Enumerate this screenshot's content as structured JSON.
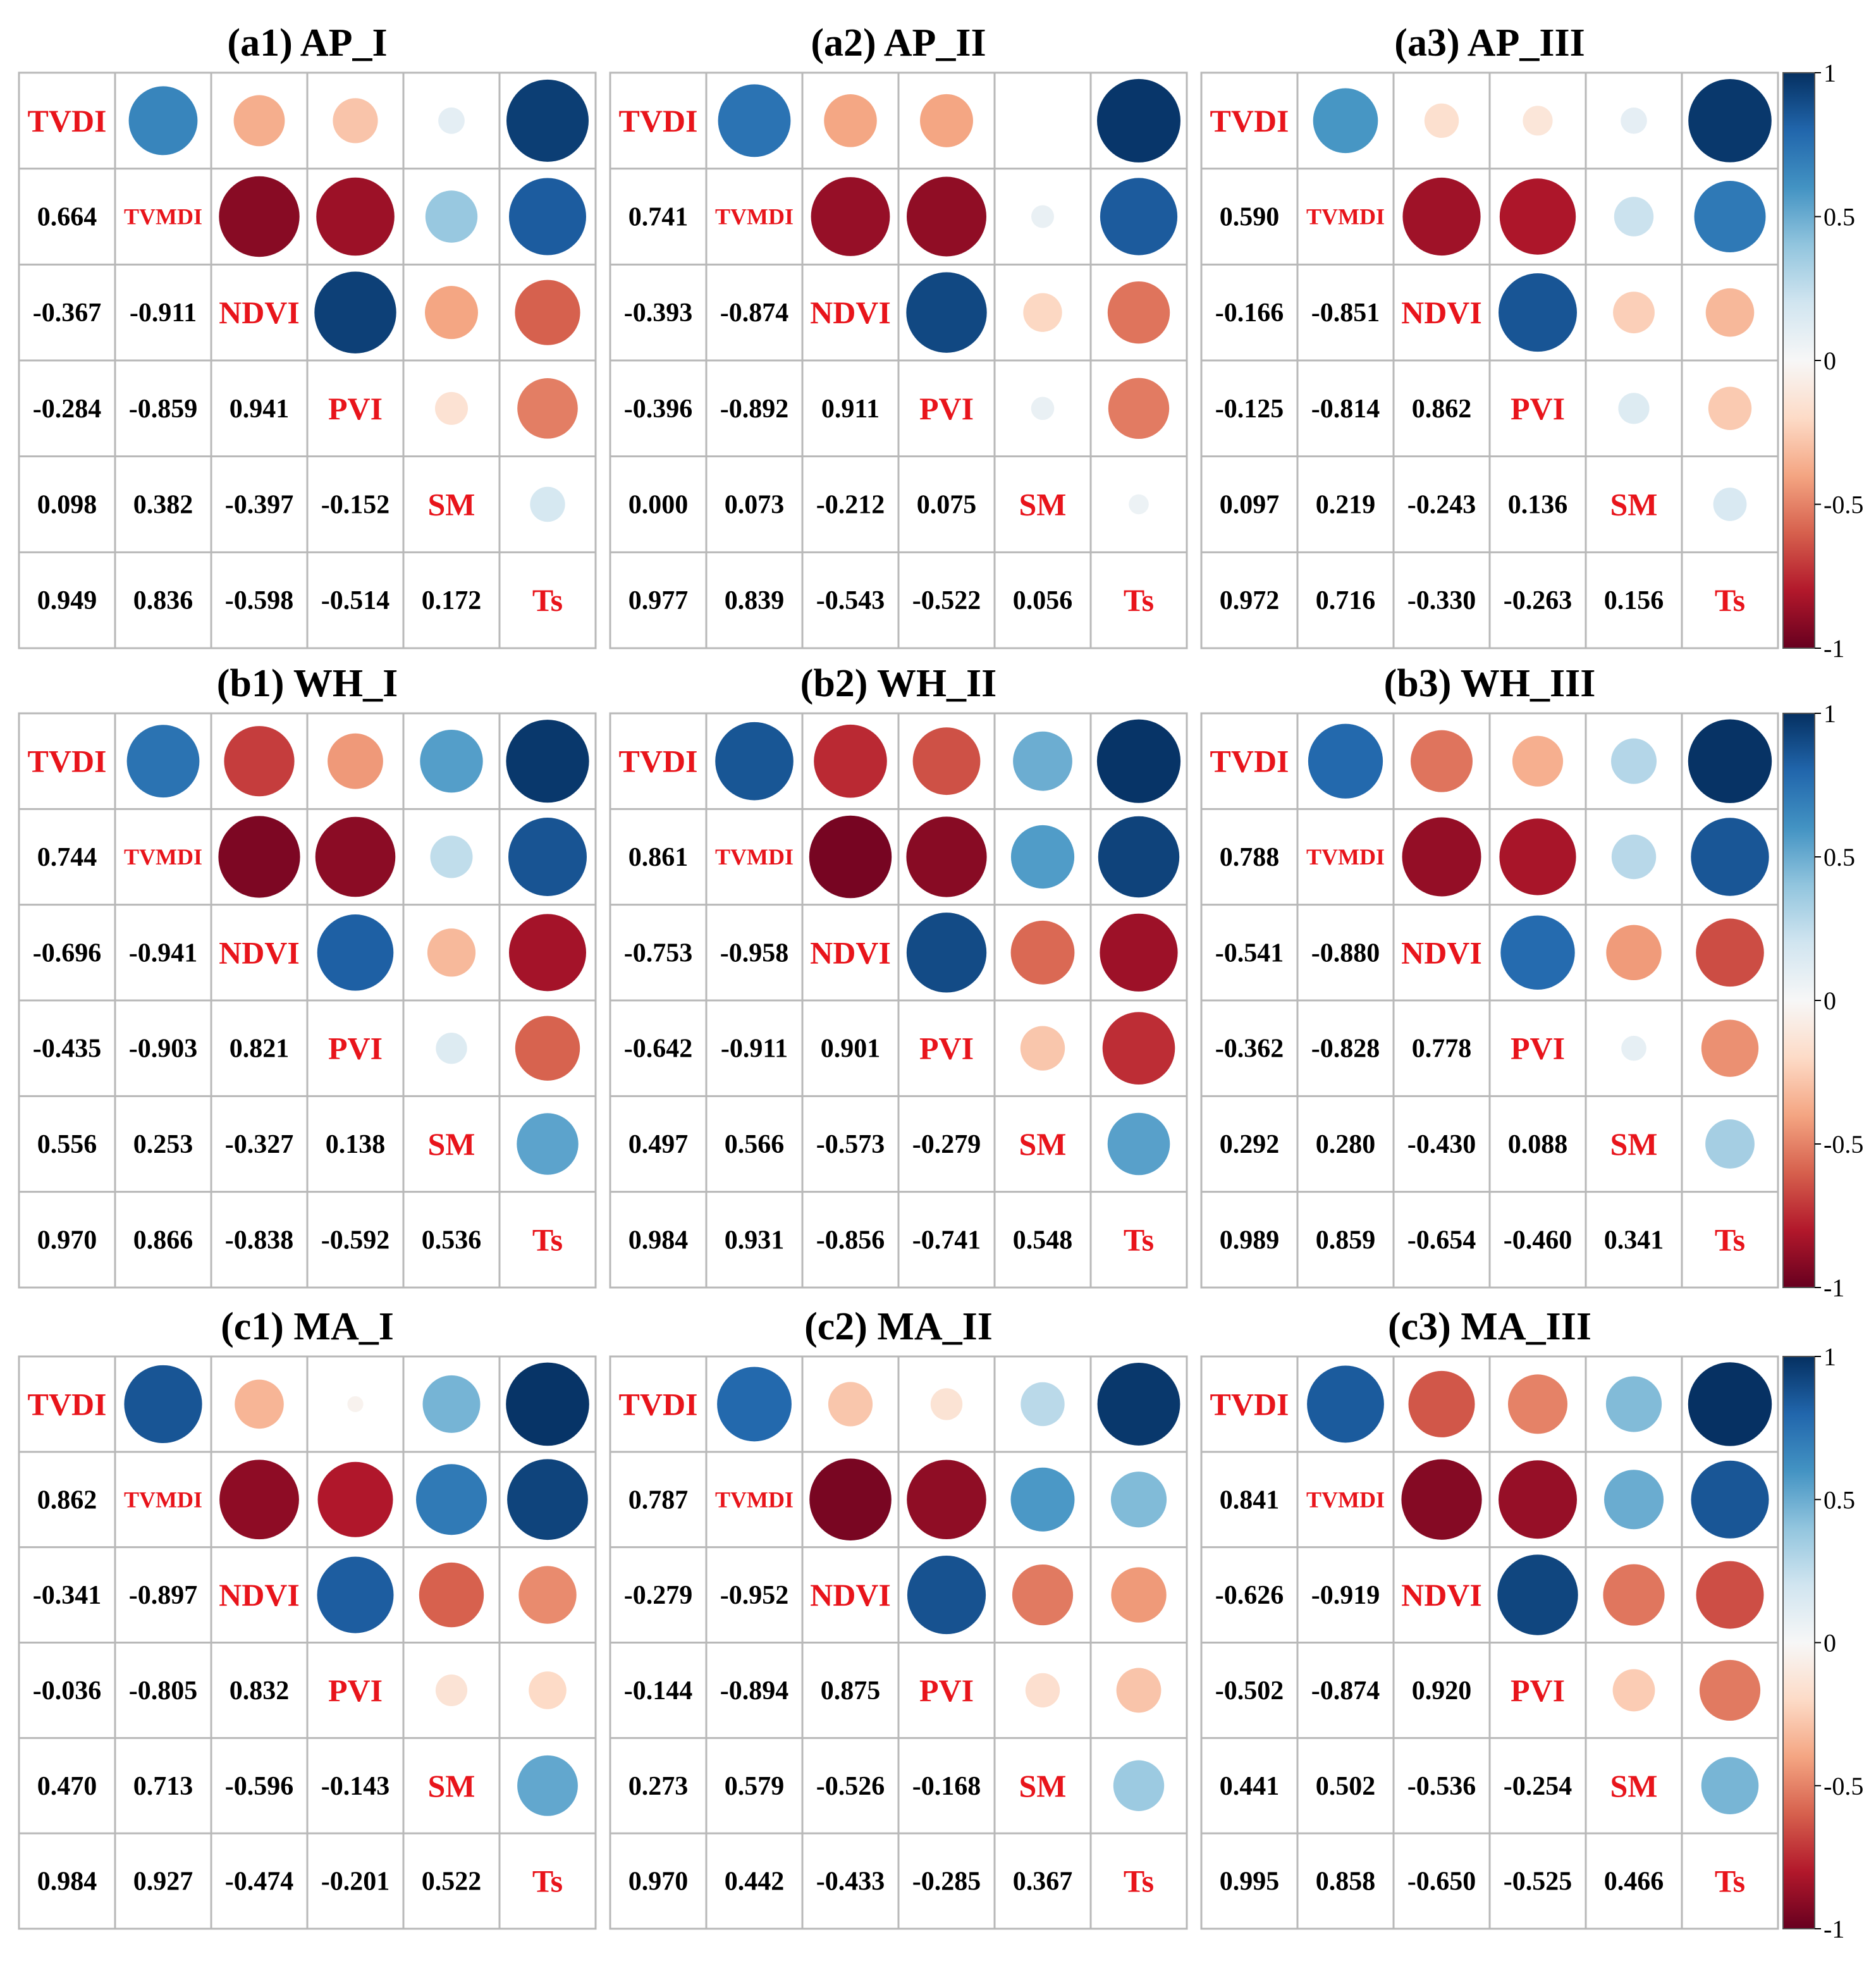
{
  "chart_data": {
    "type": "heatmap",
    "variables": [
      "TVDI",
      "TVMDI",
      "NDVI",
      "PVI",
      "SM",
      "Ts"
    ],
    "colorbar": {
      "ticks": [
        "1",
        "0.5",
        "0",
        "-0.5",
        "-1"
      ],
      "range": [
        -1,
        1
      ]
    },
    "palette": [
      "#67001f",
      "#b2182b",
      "#d6604d",
      "#f4a582",
      "#fddbc7",
      "#f7f7f7",
      "#d1e5f0",
      "#92c5de",
      "#4393c3",
      "#2166ac",
      "#053061"
    ],
    "panels": [
      {
        "title": "(a1) AP_I",
        "matrix": [
          [
            1,
            0.664,
            -0.367,
            -0.284,
            0.098,
            0.949
          ],
          [
            0.664,
            1,
            -0.911,
            -0.859,
            0.382,
            0.836
          ],
          [
            -0.367,
            -0.911,
            1,
            0.941,
            -0.397,
            -0.598
          ],
          [
            -0.284,
            -0.859,
            0.941,
            1,
            -0.152,
            -0.514
          ],
          [
            0.098,
            0.382,
            -0.397,
            -0.152,
            1,
            0.172
          ],
          [
            0.949,
            0.836,
            -0.598,
            -0.514,
            0.172,
            1
          ]
        ],
        "labels": [
          [
            "0.664",
            "-0.367",
            "-0.284",
            "0.098",
            "0.949"
          ],
          [
            "-0.911",
            "-0.859",
            "0.382",
            "0.836"
          ],
          [
            "0.941",
            "-0.397",
            "-0.598"
          ],
          [
            "-0.152",
            "-0.514"
          ],
          [
            "0.172"
          ]
        ]
      },
      {
        "title": "(a2) AP_II",
        "matrix": [
          [
            1,
            0.741,
            -0.393,
            -0.396,
            0.0,
            0.977
          ],
          [
            0.741,
            1,
            -0.874,
            -0.892,
            0.073,
            0.839
          ],
          [
            -0.393,
            -0.874,
            1,
            0.911,
            -0.212,
            -0.543
          ],
          [
            -0.396,
            -0.892,
            0.911,
            1,
            0.075,
            -0.522
          ],
          [
            0.0,
            0.073,
            -0.212,
            0.075,
            1,
            0.056
          ],
          [
            0.977,
            0.839,
            -0.543,
            -0.522,
            0.056,
            1
          ]
        ],
        "labels": [
          [
            "0.741",
            "-0.393",
            "-0.396",
            "0.000",
            "0.977"
          ],
          [
            "-0.874",
            "-0.892",
            "0.073",
            "0.839"
          ],
          [
            "0.911",
            "-0.212",
            "-0.543"
          ],
          [
            "0.075",
            "-0.522"
          ],
          [
            "0.056"
          ]
        ]
      },
      {
        "title": "(a3) AP_III",
        "matrix": [
          [
            1,
            0.59,
            -0.166,
            -0.125,
            0.097,
            0.972
          ],
          [
            0.59,
            1,
            -0.851,
            -0.814,
            0.219,
            0.716
          ],
          [
            -0.166,
            -0.851,
            1,
            0.862,
            -0.243,
            -0.33
          ],
          [
            -0.125,
            -0.814,
            0.862,
            1,
            0.136,
            -0.263
          ],
          [
            0.097,
            0.219,
            -0.243,
            0.136,
            1,
            0.156
          ],
          [
            0.972,
            0.716,
            -0.33,
            -0.263,
            0.156,
            1
          ]
        ],
        "labels": [
          [
            "0.590",
            "-0.166",
            "-0.125",
            "0.097",
            "0.972"
          ],
          [
            "-0.851",
            "-0.814",
            "0.219",
            "0.716"
          ],
          [
            "0.862",
            "-0.243",
            "-0.330"
          ],
          [
            "0.136",
            "-0.263"
          ],
          [
            "0.156"
          ]
        ]
      },
      {
        "title": "(b1) WH_I",
        "matrix": [
          [
            1,
            0.744,
            -0.696,
            -0.435,
            0.556,
            0.97
          ],
          [
            0.744,
            1,
            -0.941,
            -0.903,
            0.253,
            0.866
          ],
          [
            -0.696,
            -0.941,
            1,
            0.821,
            -0.327,
            -0.838
          ],
          [
            -0.435,
            -0.903,
            0.821,
            1,
            0.138,
            -0.592
          ],
          [
            0.556,
            0.253,
            -0.327,
            0.138,
            1,
            0.536
          ],
          [
            0.97,
            0.866,
            -0.838,
            -0.592,
            0.536,
            1
          ]
        ],
        "labels": [
          [
            "0.744",
            "-0.696",
            "-0.435",
            "0.556",
            "0.970"
          ],
          [
            "-0.941",
            "-0.903",
            "0.253",
            "0.866"
          ],
          [
            "0.821",
            "-0.327",
            "-0.838"
          ],
          [
            "0.138",
            "-0.592"
          ],
          [
            "0.536"
          ]
        ]
      },
      {
        "title": "(b2) WH_II",
        "matrix": [
          [
            1,
            0.861,
            -0.753,
            -0.642,
            0.497,
            0.984
          ],
          [
            0.861,
            1,
            -0.958,
            -0.911,
            0.566,
            0.931
          ],
          [
            -0.753,
            -0.958,
            1,
            0.901,
            -0.573,
            -0.856
          ],
          [
            -0.642,
            -0.911,
            0.901,
            1,
            -0.279,
            -0.741
          ],
          [
            0.497,
            0.566,
            -0.573,
            -0.279,
            1,
            0.548
          ],
          [
            0.984,
            0.931,
            -0.856,
            -0.741,
            0.548,
            1
          ]
        ],
        "labels": [
          [
            "0.861",
            "-0.753",
            "-0.642",
            "0.497",
            "0.984"
          ],
          [
            "-0.958",
            "-0.911",
            "0.566",
            "0.931"
          ],
          [
            "0.901",
            "-0.573",
            "-0.856"
          ],
          [
            "-0.279",
            "-0.741"
          ],
          [
            "0.548"
          ]
        ]
      },
      {
        "title": "(b3) WH_III",
        "matrix": [
          [
            1,
            0.788,
            -0.541,
            -0.362,
            0.292,
            0.989
          ],
          [
            0.788,
            1,
            -0.88,
            -0.828,
            0.28,
            0.859
          ],
          [
            -0.541,
            -0.88,
            1,
            0.778,
            -0.43,
            -0.654
          ],
          [
            -0.362,
            -0.828,
            0.778,
            1,
            0.088,
            -0.46
          ],
          [
            0.292,
            0.28,
            -0.43,
            0.088,
            1,
            0.341
          ],
          [
            0.989,
            0.859,
            -0.654,
            -0.46,
            0.341,
            1
          ]
        ],
        "labels": [
          [
            "0.788",
            "-0.541",
            "-0.362",
            "0.292",
            "0.989"
          ],
          [
            "-0.880",
            "-0.828",
            "0.280",
            "0.859"
          ],
          [
            "0.778",
            "-0.430",
            "-0.654"
          ],
          [
            "0.088",
            "-0.460"
          ],
          [
            "0.341"
          ]
        ]
      },
      {
        "title": "(c1) MA_I",
        "matrix": [
          [
            1,
            0.862,
            -0.341,
            -0.036,
            0.47,
            0.984
          ],
          [
            0.862,
            1,
            -0.897,
            -0.805,
            0.713,
            0.927
          ],
          [
            -0.341,
            -0.897,
            1,
            0.832,
            -0.596,
            -0.474
          ],
          [
            -0.036,
            -0.805,
            0.832,
            1,
            -0.143,
            -0.201
          ],
          [
            0.47,
            0.713,
            -0.596,
            -0.143,
            1,
            0.522
          ],
          [
            0.984,
            0.927,
            -0.474,
            -0.201,
            0.522,
            1
          ]
        ],
        "labels": [
          [
            "0.862",
            "-0.341",
            "-0.036",
            "0.470",
            "0.984"
          ],
          [
            "-0.897",
            "-0.805",
            "0.713",
            "0.927"
          ],
          [
            "0.832",
            "-0.596",
            "-0.474"
          ],
          [
            "-0.143",
            "-0.201"
          ],
          [
            "0.522"
          ]
        ]
      },
      {
        "title": "(c2) MA_II",
        "matrix": [
          [
            1,
            0.787,
            -0.279,
            -0.144,
            0.273,
            0.97
          ],
          [
            0.787,
            1,
            -0.952,
            -0.894,
            0.579,
            0.442
          ],
          [
            -0.279,
            -0.952,
            1,
            0.875,
            -0.526,
            -0.433
          ],
          [
            -0.144,
            -0.894,
            0.875,
            1,
            -0.168,
            -0.285
          ],
          [
            0.273,
            0.579,
            -0.526,
            -0.168,
            1,
            0.367
          ],
          [
            0.97,
            0.442,
            -0.433,
            -0.285,
            0.367,
            1
          ]
        ],
        "labels": [
          [
            "0.787",
            "-0.279",
            "-0.144",
            "0.273",
            "0.970"
          ],
          [
            "-0.952",
            "-0.894",
            "0.579",
            "0.442"
          ],
          [
            "0.875",
            "-0.526",
            "-0.433"
          ],
          [
            "-0.168",
            "-0.285"
          ],
          [
            "0.367"
          ]
        ]
      },
      {
        "title": "(c3) MA_III",
        "matrix": [
          [
            1,
            0.841,
            -0.626,
            -0.502,
            0.441,
            0.995
          ],
          [
            0.841,
            1,
            -0.919,
            -0.874,
            0.502,
            0.858
          ],
          [
            -0.626,
            -0.919,
            1,
            0.92,
            -0.536,
            -0.65
          ],
          [
            -0.502,
            -0.874,
            0.92,
            1,
            -0.254,
            -0.525
          ],
          [
            0.441,
            0.502,
            -0.536,
            -0.254,
            1,
            0.466
          ],
          [
            0.995,
            0.858,
            -0.65,
            -0.525,
            0.466,
            1
          ]
        ],
        "labels": [
          [
            "0.841",
            "-0.626",
            "-0.502",
            "0.441",
            "0.995"
          ],
          [
            "-0.919",
            "-0.874",
            "0.502",
            "0.858"
          ],
          [
            "0.920",
            "-0.536",
            "-0.650"
          ],
          [
            "-0.254",
            "-0.525"
          ],
          [
            "0.466"
          ]
        ]
      }
    ]
  }
}
